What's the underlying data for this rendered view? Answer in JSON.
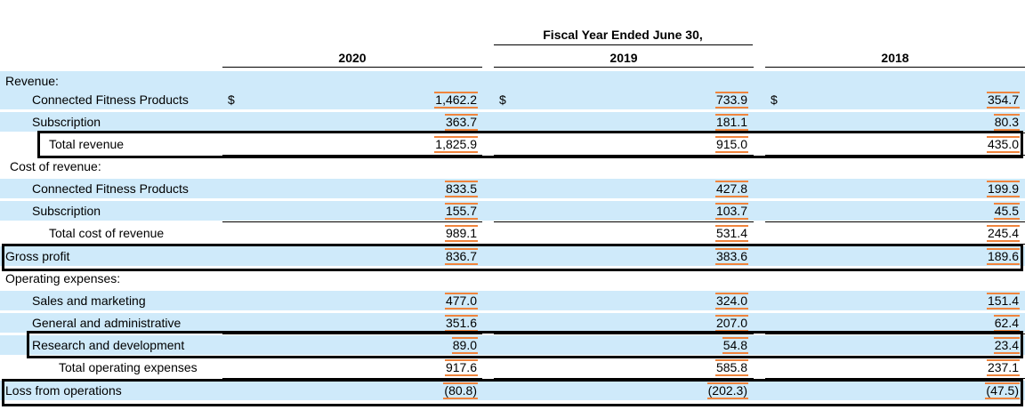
{
  "header": {
    "fiscal_title": "Fiscal Year Ended June 30,",
    "years": [
      "2020",
      "2019",
      "2018"
    ]
  },
  "rows": [
    {
      "label": "Revenue:",
      "values": [
        "",
        "",
        ""
      ],
      "dollar": false
    },
    {
      "label": "Connected Fitness Products",
      "values": [
        "1,462.2",
        "733.9",
        "354.7"
      ],
      "dollar": true
    },
    {
      "label": "Subscription",
      "values": [
        "363.7",
        "181.1",
        "80.3"
      ],
      "dollar": false
    },
    {
      "label": "Total revenue",
      "values": [
        "1,825.9",
        "915.0",
        "435.0"
      ],
      "dollar": false
    },
    {
      "label": "Cost of revenue:",
      "values": [
        "",
        "",
        ""
      ],
      "dollar": false
    },
    {
      "label": "Connected Fitness Products",
      "values": [
        "833.5",
        "427.8",
        "199.9"
      ],
      "dollar": false
    },
    {
      "label": "Subscription",
      "values": [
        "155.7",
        "103.7",
        "45.5"
      ],
      "dollar": false
    },
    {
      "label": "Total cost of revenue",
      "values": [
        "989.1",
        "531.4",
        "245.4"
      ],
      "dollar": false
    },
    {
      "label": "Gross profit",
      "values": [
        "836.7",
        "383.6",
        "189.6"
      ],
      "dollar": false
    },
    {
      "label": "Operating expenses:",
      "values": [
        "",
        "",
        ""
      ],
      "dollar": false
    },
    {
      "label": "Sales and marketing",
      "values": [
        "477.0",
        "324.0",
        "151.4"
      ],
      "dollar": false
    },
    {
      "label": "General and administrative",
      "values": [
        "351.6",
        "207.0",
        "62.4"
      ],
      "dollar": false
    },
    {
      "label": "Research and development",
      "values": [
        "89.0",
        "54.8",
        "23.4"
      ],
      "dollar": false
    },
    {
      "label": "Total operating expenses",
      "values": [
        "917.6",
        "585.8",
        "237.1"
      ],
      "dollar": false
    },
    {
      "label": "Loss from operations",
      "values": [
        "(80.8)",
        "(202.3)",
        "(47.5)"
      ],
      "dollar": false
    }
  ],
  "currency_symbol": "$",
  "colors": {
    "row_highlight": "#cfeafa",
    "value_underline": "#f0843c",
    "box_border": "#000000"
  }
}
